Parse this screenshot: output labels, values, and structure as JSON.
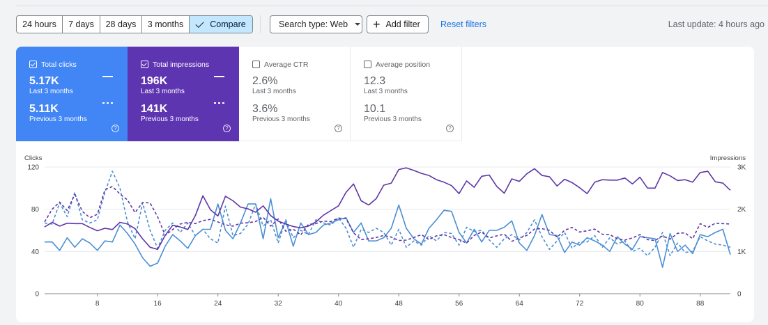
{
  "toolbar": {
    "ranges": [
      {
        "label": "24 hours",
        "selected": false
      },
      {
        "label": "7 days",
        "selected": false
      },
      {
        "label": "28 days",
        "selected": false
      },
      {
        "label": "3 months",
        "selected": false
      },
      {
        "label": "Compare",
        "selected": true
      }
    ],
    "search_type": "Search type: Web",
    "add_filter": "Add filter",
    "reset": "Reset filters",
    "last_update": "Last update: 4 hours ago"
  },
  "metrics": [
    {
      "title": "Total clicks",
      "checked": true,
      "value": "5.17K",
      "label": "Last 3 months",
      "prev_value": "5.11K",
      "prev_label": "Previous 3 months",
      "color": "#4285f4"
    },
    {
      "title": "Total impressions",
      "checked": true,
      "value": "196K",
      "label": "Last 3 months",
      "prev_value": "141K",
      "prev_label": "Previous 3 months",
      "color": "#5e35b1"
    },
    {
      "title": "Average CTR",
      "checked": false,
      "value": "2.6%",
      "label": "Last 3 months",
      "prev_value": "3.6%",
      "prev_label": "Previous 3 months"
    },
    {
      "title": "Average position",
      "checked": false,
      "value": "12.3",
      "label": "Last 3 months",
      "prev_value": "10.1",
      "prev_label": "Previous 3 months"
    }
  ],
  "chart_data": {
    "type": "line",
    "left_axis": {
      "label": "Clicks",
      "ticks": [
        0,
        40,
        80,
        120
      ],
      "range": [
        0,
        120
      ]
    },
    "right_axis": {
      "label": "Impressions",
      "ticks": [
        "0",
        "1K",
        "2K",
        "3K"
      ],
      "range": [
        0,
        3000
      ]
    },
    "x_ticks": [
      8,
      16,
      24,
      32,
      40,
      48,
      56,
      64,
      72,
      80,
      88
    ],
    "x_range": [
      1,
      92
    ],
    "grid": true,
    "colors": {
      "clicks": "#4a8fd4",
      "impressions": "#5e35a8"
    },
    "series": [
      {
        "key": "clicks_last",
        "axis": "left",
        "dashed": false,
        "color": "#4a8fd4",
        "values": [
          49,
          49,
          41,
          53,
          44,
          52,
          48,
          41,
          50,
          49,
          65,
          57,
          47,
          34,
          26,
          29,
          45,
          56,
          50,
          43,
          55,
          61,
          61,
          85,
          60,
          52,
          67,
          85,
          85,
          52,
          90,
          53,
          69,
          45,
          67,
          56,
          58,
          65,
          67,
          70,
          72,
          58,
          67,
          50,
          50,
          53,
          62,
          84,
          62,
          52,
          47,
          62,
          70,
          79,
          78,
          58,
          48,
          61,
          49,
          60,
          60,
          63,
          69,
          48,
          41,
          55,
          75,
          56,
          55,
          39,
          49,
          46,
          53,
          50,
          46,
          40,
          54,
          47,
          42,
          54,
          53,
          52,
          25,
          57,
          40,
          46,
          38,
          56,
          54,
          58,
          61,
          37
        ]
      },
      {
        "key": "clicks_prev",
        "axis": "left",
        "dashed": true,
        "color": "#4a8fd4",
        "values": [
          67,
          66,
          86,
          73,
          96,
          70,
          67,
          70,
          96,
          116,
          100,
          68,
          52,
          86,
          60,
          43,
          60,
          67,
          58,
          67,
          55,
          61,
          52,
          48,
          83,
          55,
          57,
          66,
          85,
          64,
          70,
          48,
          70,
          53,
          60,
          56,
          70,
          67,
          65,
          72,
          62,
          44,
          61,
          58,
          62,
          58,
          46,
          61,
          44,
          50,
          46,
          55,
          50,
          58,
          57,
          46,
          63,
          59,
          60,
          51,
          44,
          52,
          56,
          51,
          58,
          70,
          54,
          42,
          50,
          58,
          43,
          49,
          49,
          55,
          44,
          53,
          47,
          50,
          40,
          43,
          36,
          44,
          58,
          36,
          48,
          39,
          40,
          54,
          50,
          47,
          46,
          44
        ]
      },
      {
        "key": "impressions_last",
        "axis": "right",
        "dashed": false,
        "color": "#5e35a8",
        "values": [
          1580,
          1690,
          1600,
          1670,
          1660,
          1660,
          1570,
          1490,
          1550,
          1520,
          1690,
          1650,
          1540,
          1300,
          1100,
          1050,
          1380,
          1620,
          1580,
          1520,
          1850,
          2320,
          1990,
          1840,
          2310,
          2200,
          2050,
          2010,
          1930,
          2080,
          1850,
          1720,
          1650,
          1590,
          1560,
          1600,
          1700,
          1860,
          1970,
          2080,
          2400,
          2600,
          2200,
          2100,
          2250,
          2570,
          2620,
          2940,
          2980,
          2920,
          2850,
          2800,
          2700,
          2640,
          2560,
          2370,
          2670,
          2520,
          2780,
          2810,
          2540,
          2380,
          2720,
          2660,
          2840,
          2960,
          2800,
          2770,
          2550,
          2710,
          2630,
          2510,
          2370,
          2640,
          2700,
          2690,
          2690,
          2740,
          2600,
          2760,
          2500,
          2500,
          2870,
          2790,
          2680,
          2700,
          2640,
          2870,
          2900,
          2650,
          2620,
          2450
        ]
      },
      {
        "key": "impressions_prev",
        "axis": "right",
        "dashed": true,
        "color": "#5e35a8",
        "values": [
          1700,
          2000,
          2170,
          1970,
          2350,
          1950,
          1800,
          1880,
          2460,
          2540,
          2360,
          2220,
          1920,
          2160,
          2150,
          1820,
          1380,
          1520,
          1650,
          1690,
          1660,
          1730,
          1760,
          1700,
          1630,
          1600,
          1670,
          1680,
          1710,
          1810,
          1600,
          1770,
          1480,
          1530,
          1390,
          1640,
          1660,
          1720,
          1710,
          1790,
          1780,
          1440,
          1280,
          1300,
          1330,
          1380,
          1340,
          1260,
          1270,
          1330,
          1400,
          1280,
          1370,
          1400,
          1330,
          1280,
          1200,
          1380,
          1460,
          1320,
          1370,
          1410,
          1240,
          1320,
          1380,
          1530,
          1540,
          1500,
          1340,
          1500,
          1570,
          1460,
          1490,
          1530,
          1410,
          1400,
          1300,
          1270,
          1320,
          1400,
          1280,
          1260,
          1370,
          1290,
          1430,
          1440,
          1300,
          1660,
          1570,
          1670,
          1660,
          1650
        ]
      }
    ]
  }
}
